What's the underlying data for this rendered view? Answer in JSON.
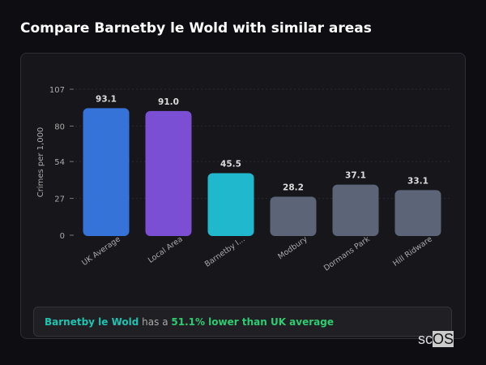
{
  "title": "Compare Barnetby le Wold with similar areas",
  "chart_data": {
    "type": "bar",
    "categories": [
      "UK Average",
      "Local Area",
      "Barnetby l...",
      "Modbury",
      "Dormans Park",
      "Hill Ridware"
    ],
    "values": [
      93.1,
      91.0,
      45.5,
      28.2,
      37.1,
      33.1
    ],
    "value_labels": [
      "93.1",
      "91.0",
      "45.5",
      "28.2",
      "37.1",
      "33.1"
    ],
    "colors": [
      "#3673d8",
      "#7b4fd4",
      "#20b8cc",
      "#5b6577",
      "#5b6577",
      "#5b6577"
    ],
    "ylabel": "Crimes per 1,000",
    "xlabel": "",
    "ylim": [
      0,
      107
    ],
    "yticks": [
      0,
      27,
      54,
      80,
      107
    ],
    "grid": true
  },
  "callout": {
    "area": "Barnetby le Wold",
    "middle": " has a ",
    "result": "51.1% lower than UK average"
  },
  "logo": {
    "text": "scOS"
  }
}
